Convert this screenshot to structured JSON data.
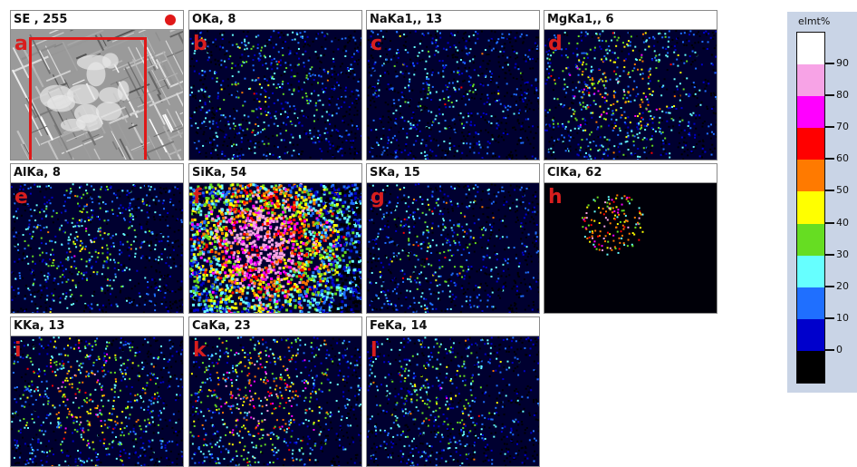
{
  "tiles": [
    {
      "id": "se",
      "header": "SE , 255",
      "letter": "a",
      "kind": "se"
    },
    {
      "id": "o",
      "header": "OKa, 8",
      "letter": "b",
      "intensity": 0.35,
      "hot": 0.05
    },
    {
      "id": "na",
      "header": "NaKa1,, 13",
      "letter": "c",
      "intensity": 0.25,
      "hot": 0.1
    },
    {
      "id": "mg",
      "header": "MgKa1,, 6",
      "letter": "d",
      "intensity": 0.5,
      "hot": 0.25
    },
    {
      "id": "al",
      "header": "AlKa, 8",
      "letter": "e",
      "intensity": 0.4,
      "hot": 0.1
    },
    {
      "id": "si",
      "header": "SiKa, 54",
      "letter": "f",
      "intensity": 0.95,
      "hot": 0.6
    },
    {
      "id": "s",
      "header": "SKa, 15",
      "letter": "g",
      "intensity": 0.3,
      "hot": 0.15
    },
    {
      "id": "cl",
      "header": "ClKa, 62",
      "letter": "h",
      "intensity": 0.15,
      "hot": 0.4
    },
    {
      "id": "k",
      "header": "KKa, 13",
      "letter": "i",
      "intensity": 0.55,
      "hot": 0.3
    },
    {
      "id": "ca",
      "header": "CaKa, 23",
      "letter": "k",
      "intensity": 0.6,
      "hot": 0.5
    },
    {
      "id": "fe",
      "header": "FeKa, 14",
      "letter": "l",
      "intensity": 0.35,
      "hot": 0.1
    }
  ],
  "scale": {
    "title": "elmt%",
    "ticks": [
      "90",
      "80",
      "70",
      "60",
      "50",
      "40",
      "30",
      "20",
      "10",
      "0"
    ],
    "colors": [
      "#ffffff",
      "#f7a3e6",
      "#ff00ff",
      "#ff0000",
      "#ff7a00",
      "#ffff00",
      "#66dd22",
      "#66ffff",
      "#1f6fff",
      "#0000cc",
      "#000000"
    ]
  }
}
